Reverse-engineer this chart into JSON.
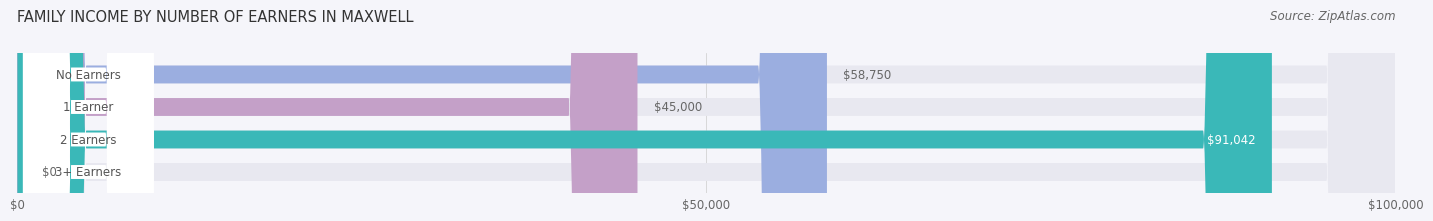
{
  "title": "FAMILY INCOME BY NUMBER OF EARNERS IN MAXWELL",
  "source": "Source: ZipAtlas.com",
  "categories": [
    "No Earners",
    "1 Earner",
    "2 Earners",
    "3+ Earners"
  ],
  "values": [
    58750,
    45000,
    91042,
    0
  ],
  "value_labels": [
    "$58,750",
    "$45,000",
    "$91,042",
    "$0"
  ],
  "bar_colors": [
    "#9baee0",
    "#c4a0c8",
    "#3ab8b8",
    "#b0b8e8"
  ],
  "track_color": "#e8e8f0",
  "xlim": [
    0,
    100000
  ],
  "xtick_values": [
    0,
    50000,
    100000
  ],
  "xtick_labels": [
    "$0",
    "$50,000",
    "$100,000"
  ],
  "background_color": "#f5f5fa",
  "title_fontsize": 10.5,
  "source_fontsize": 8.5,
  "label_fontsize": 8.5,
  "value_fontsize": 8.5,
  "bar_height": 0.55,
  "label_box_color": "#ffffff",
  "label_text_color": "#555555",
  "value_text_color_inside": "#ffffff",
  "value_text_color_outside": "#666666"
}
